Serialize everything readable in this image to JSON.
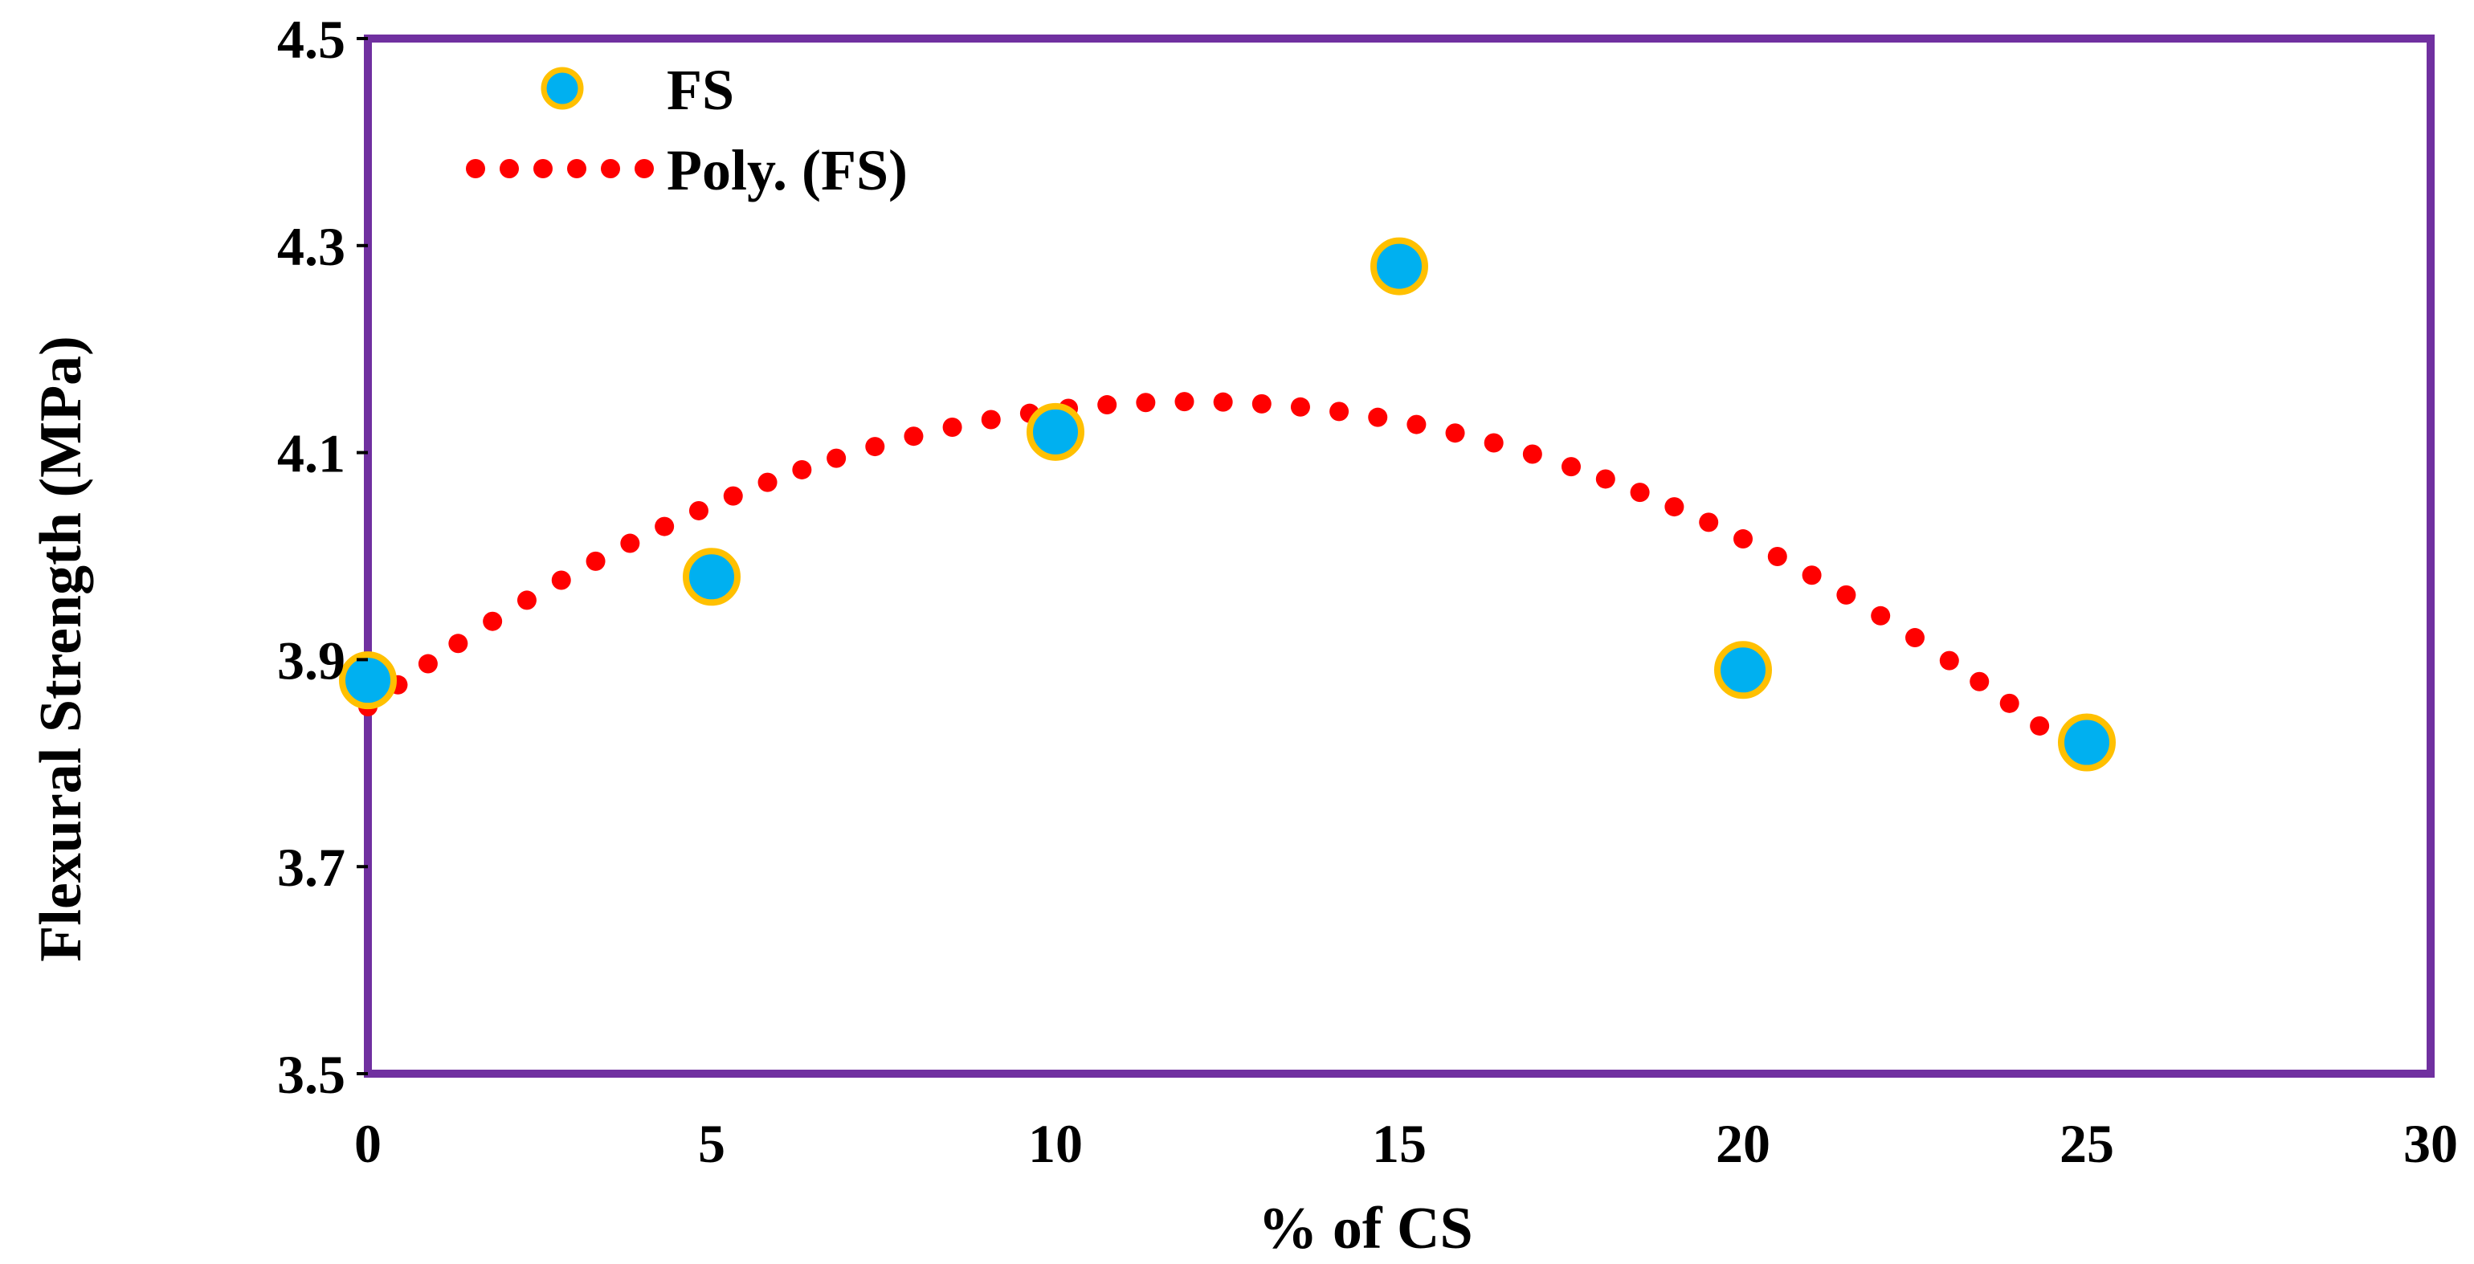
{
  "chart_data": {
    "type": "scatter",
    "title": "",
    "xlabel": "% of CS",
    "ylabel": "Flexural Strength (MPa)",
    "xlim": [
      0,
      30
    ],
    "ylim": [
      3.5,
      4.5
    ],
    "xticks": [
      0,
      5,
      10,
      15,
      20,
      25,
      30
    ],
    "yticks": [
      3.5,
      3.7,
      3.9,
      4.1,
      4.3,
      4.5
    ],
    "xtick_labels": [
      "0",
      "5",
      "10",
      "15",
      "20",
      "25",
      "30"
    ],
    "ytick_labels": [
      "3.5",
      "3.7",
      "3.9",
      "4.1",
      "4.3",
      "4.5"
    ],
    "grid": false,
    "legend_position": "top-left",
    "series": [
      {
        "name": "FS",
        "kind": "scatter",
        "x": [
          0,
          5,
          10,
          15,
          20,
          25
        ],
        "y": [
          3.88,
          3.98,
          4.12,
          4.28,
          3.89,
          3.82
        ],
        "fill_color": "#00B0F0",
        "edge_color": "#FFC000"
      },
      {
        "name": "Poly. (FS)",
        "kind": "trendline",
        "degree": 2,
        "coefficients": [
          3.8545,
          0.04925,
          -0.0020571
        ],
        "x_range": [
          0,
          25
        ],
        "color": "#FF0000",
        "style": "dotted"
      }
    ],
    "colors": {
      "plot_border": "#7030A0",
      "text": "#000000"
    }
  }
}
